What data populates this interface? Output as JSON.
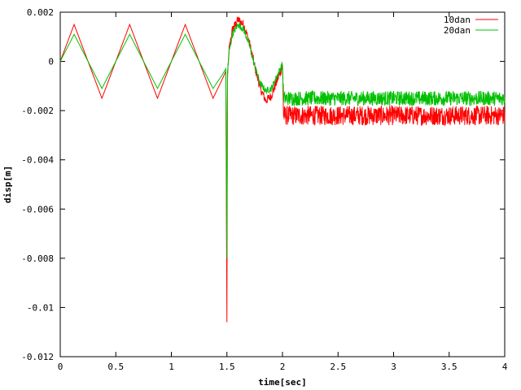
{
  "chart_data": {
    "type": "line",
    "title": "",
    "xlabel": "time[sec]",
    "ylabel": "disp[m]",
    "xlim": [
      0,
      4
    ],
    "ylim": [
      -0.012,
      0.002
    ],
    "xticks": [
      0,
      0.5,
      1,
      1.5,
      2,
      2.5,
      3,
      3.5,
      4
    ],
    "xtick_labels": [
      "0",
      "0.5",
      "1",
      "1.5",
      "2",
      "2.5",
      "3",
      "3.5",
      "4"
    ],
    "yticks": [
      0.002,
      0,
      -0.002,
      -0.004,
      -0.006,
      -0.008,
      -0.01,
      -0.012
    ],
    "ytick_labels": [
      "0.002",
      "0",
      "-0.002",
      "-0.004",
      "-0.006",
      "-0.008",
      "-0.01",
      "-0.012"
    ],
    "grid": false,
    "legend_position": "top-right",
    "series": [
      {
        "name": "10dan",
        "color": "#ff0000",
        "x": [
          0,
          0.125,
          0.25,
          0.375,
          0.5,
          0.625,
          0.75,
          0.875,
          1.0,
          1.125,
          1.25,
          1.375,
          1.45,
          1.49,
          1.5,
          1.505,
          1.52,
          1.55,
          1.6,
          1.65,
          1.7,
          1.75,
          1.8,
          1.85,
          1.9,
          1.95,
          2.0,
          2.01,
          2.5,
          3.0,
          3.5,
          4.0
        ],
        "y": [
          0,
          0.0015,
          0,
          -0.0015,
          0,
          0.0015,
          0,
          -0.0015,
          0,
          0.0015,
          0,
          -0.0015,
          -0.0008,
          -0.0004,
          -0.0106,
          -0.0007,
          0.0005,
          0.0013,
          0.0017,
          0.0015,
          0.0008,
          -0.0002,
          -0.0011,
          -0.0016,
          -0.0014,
          -0.0008,
          -0.0002,
          -0.0022,
          -0.0022,
          -0.0022,
          -0.0022,
          -0.0022
        ],
        "noise_amplitude": 0.0004
      },
      {
        "name": "20dan",
        "color": "#00c000",
        "x": [
          0,
          0.125,
          0.25,
          0.375,
          0.5,
          0.625,
          0.75,
          0.875,
          1.0,
          1.125,
          1.25,
          1.375,
          1.45,
          1.49,
          1.5,
          1.505,
          1.52,
          1.55,
          1.6,
          1.65,
          1.7,
          1.75,
          1.8,
          1.85,
          1.9,
          1.95,
          2.0,
          2.01,
          2.5,
          3.0,
          3.5,
          4.0
        ],
        "y": [
          0,
          0.0011,
          0,
          -0.0011,
          0,
          0.0011,
          0,
          -0.0011,
          0,
          0.0011,
          0,
          -0.0011,
          -0.0006,
          -0.0003,
          -0.008,
          -0.0005,
          0.0004,
          0.0011,
          0.0015,
          0.0013,
          0.0007,
          -0.0002,
          -0.0009,
          -0.0012,
          -0.0011,
          -0.0006,
          -0.0001,
          -0.0015,
          -0.0015,
          -0.0015,
          -0.0015,
          -0.0015
        ],
        "noise_amplitude": 0.0003
      }
    ]
  }
}
